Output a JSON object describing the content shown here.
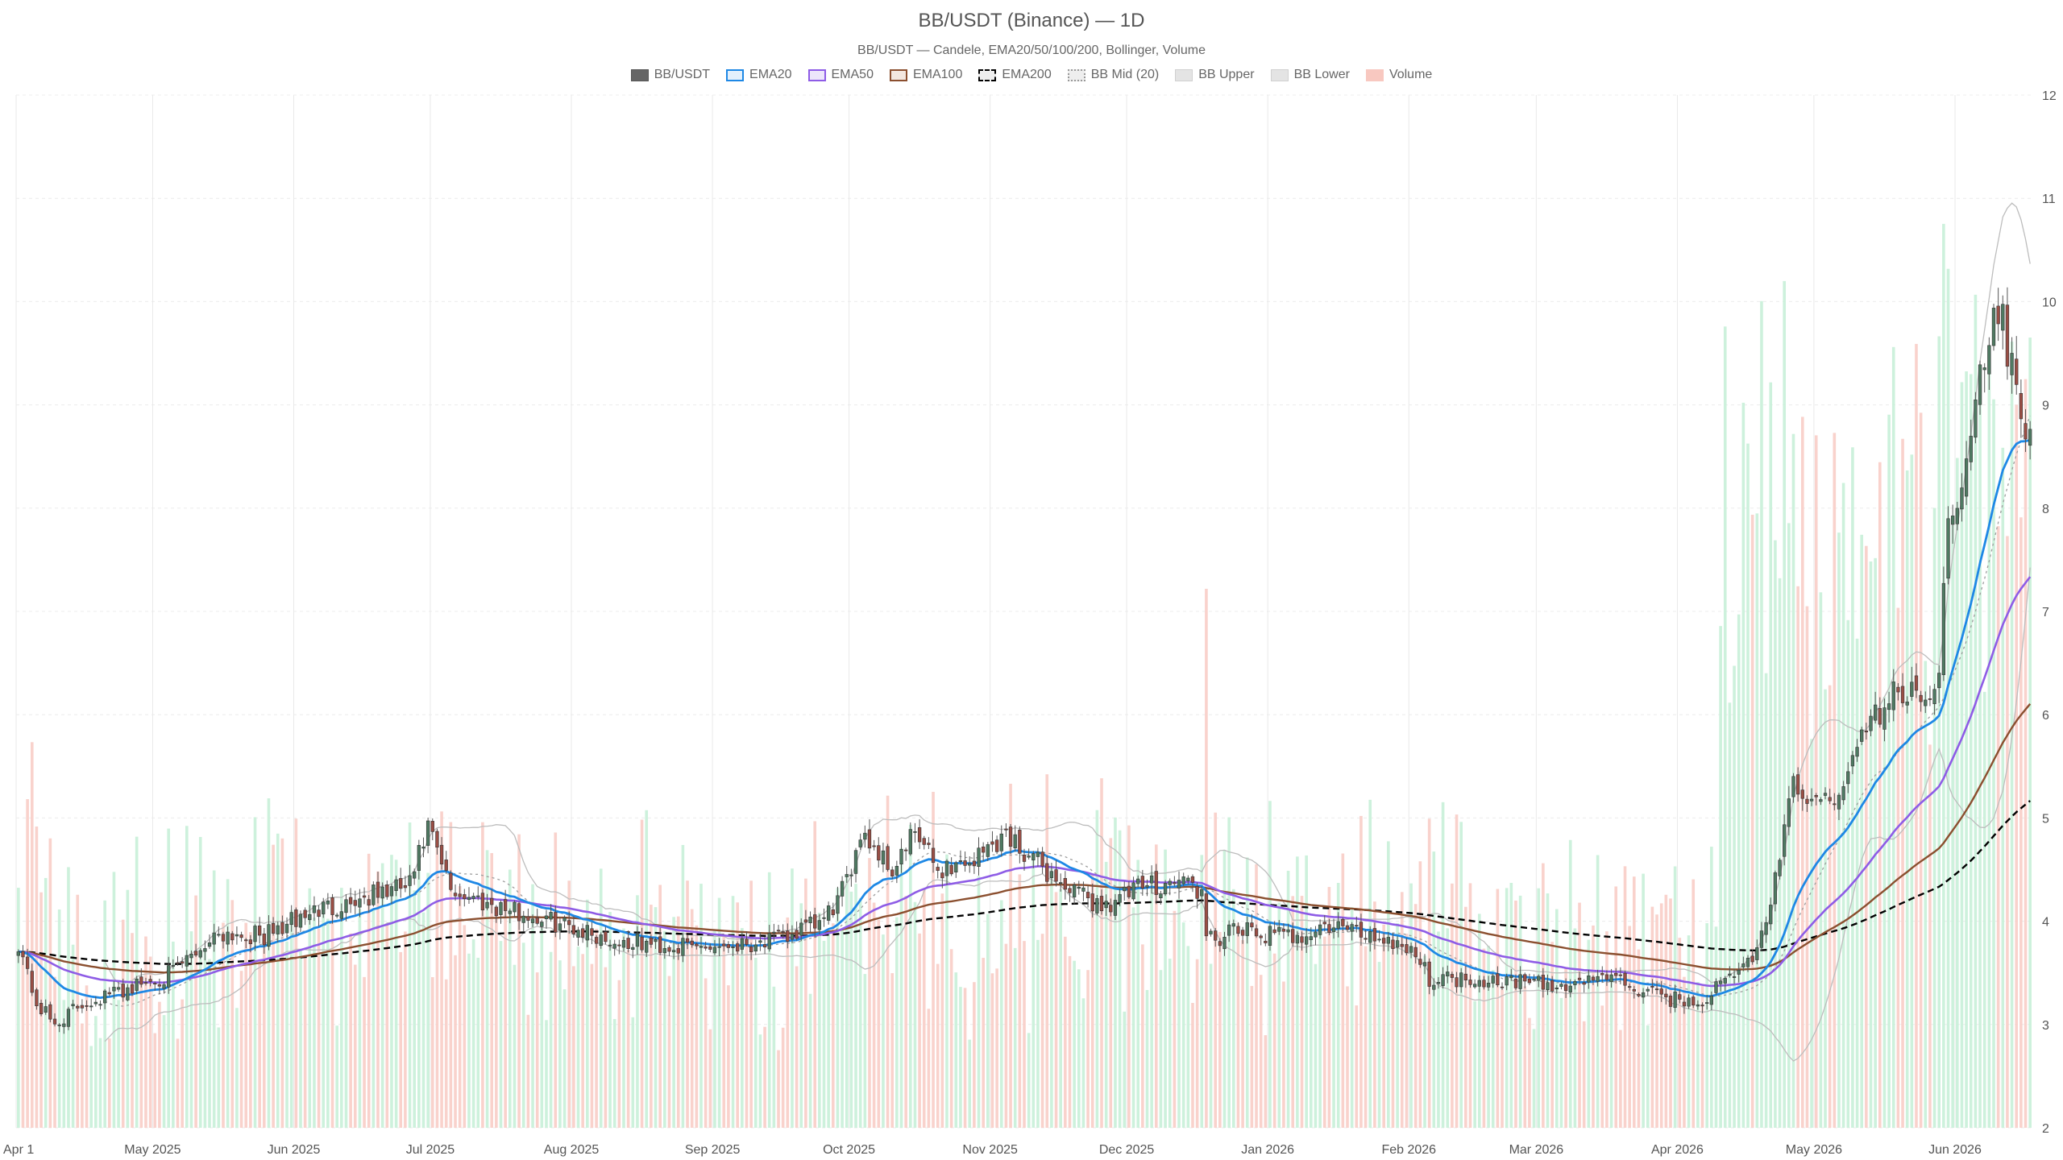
{
  "chart_data": {
    "type": "candlestick",
    "title": "BB/USDT (Binance) — 1D",
    "subtitle": "BB/USDT — Candele, EMA20/50/100/200, Bollinger, Volume",
    "legend": [
      {
        "label": "BB/USDT",
        "style": "candle",
        "color": "#666666"
      },
      {
        "label": "EMA20",
        "style": "line",
        "color": "#1e88e5"
      },
      {
        "label": "EMA50",
        "style": "line",
        "color": "#8e5ce6"
      },
      {
        "label": "EMA100",
        "style": "line",
        "color": "#8b4f2f"
      },
      {
        "label": "EMA200",
        "style": "dashed",
        "color": "#000000"
      },
      {
        "label": "BB Mid (20)",
        "style": "dotted",
        "color": "#9e9e9e"
      },
      {
        "label": "BB Upper",
        "style": "band",
        "color": "#bdbdbd"
      },
      {
        "label": "BB Lower",
        "style": "band",
        "color": "#bdbdbd"
      },
      {
        "label": "Volume",
        "style": "bar",
        "color": "#f8c8c0"
      }
    ],
    "ylim": [
      2,
      12
    ],
    "yticks": [
      2,
      3,
      4,
      5,
      6,
      7,
      8,
      9,
      10,
      11,
      12
    ],
    "x_range": [
      "2025-04-01",
      "2026-06-17"
    ],
    "xticks": [
      {
        "date": "2025-04-01",
        "label": "Apr 1"
      },
      {
        "date": "2025-05-01",
        "label": "May 2025"
      },
      {
        "date": "2025-06-01",
        "label": "Jun 2025"
      },
      {
        "date": "2025-07-01",
        "label": "Jul 2025"
      },
      {
        "date": "2025-08-01",
        "label": "Aug 2025"
      },
      {
        "date": "2025-09-01",
        "label": "Sep 2025"
      },
      {
        "date": "2025-10-01",
        "label": "Oct 2025"
      },
      {
        "date": "2025-11-01",
        "label": "Nov 2025"
      },
      {
        "date": "2025-12-01",
        "label": "Dec 2025"
      },
      {
        "date": "2026-01-01",
        "label": "Jan 2026"
      },
      {
        "date": "2026-02-01",
        "label": "Feb 2026"
      },
      {
        "date": "2026-03-01",
        "label": "Mar 2026"
      },
      {
        "date": "2026-04-01",
        "label": "Apr 2026"
      },
      {
        "date": "2026-05-01",
        "label": "May 2026"
      },
      {
        "date": "2026-06-01",
        "label": "Jun 2026"
      }
    ],
    "price_anchors": [
      [
        "2025-04-01",
        3.8
      ],
      [
        "2025-04-05",
        3.2
      ],
      [
        "2025-04-09",
        3.0
      ],
      [
        "2025-04-15",
        3.2
      ],
      [
        "2025-04-25",
        3.35
      ],
      [
        "2025-05-05",
        3.5
      ],
      [
        "2025-05-15",
        3.9
      ],
      [
        "2025-05-25",
        3.85
      ],
      [
        "2025-06-05",
        4.1
      ],
      [
        "2025-06-18",
        4.25
      ],
      [
        "2025-06-26",
        4.35
      ],
      [
        "2025-06-30",
        4.9
      ],
      [
        "2025-07-05",
        4.3
      ],
      [
        "2025-07-12",
        4.2
      ],
      [
        "2025-07-22",
        4.05
      ],
      [
        "2025-08-01",
        3.95
      ],
      [
        "2025-08-10",
        3.8
      ],
      [
        "2025-08-25",
        3.75
      ],
      [
        "2025-09-05",
        3.78
      ],
      [
        "2025-09-15",
        3.82
      ],
      [
        "2025-09-25",
        4.0
      ],
      [
        "2025-09-30",
        4.35
      ],
      [
        "2025-10-03",
        4.9
      ],
      [
        "2025-10-10",
        4.5
      ],
      [
        "2025-10-15",
        4.85
      ],
      [
        "2025-10-20",
        4.5
      ],
      [
        "2025-10-28",
        4.6
      ],
      [
        "2025-11-04",
        4.85
      ],
      [
        "2025-11-10",
        4.6
      ],
      [
        "2025-11-18",
        4.3
      ],
      [
        "2025-11-25",
        4.15
      ],
      [
        "2025-12-05",
        4.35
      ],
      [
        "2025-12-14",
        4.4
      ],
      [
        "2025-12-17",
        4.25
      ],
      [
        "2025-12-18",
        3.8
      ],
      [
        "2025-12-25",
        3.9
      ],
      [
        "2026-01-05",
        3.85
      ],
      [
        "2026-01-15",
        3.95
      ],
      [
        "2026-01-25",
        3.85
      ],
      [
        "2026-02-01",
        3.75
      ],
      [
        "2026-02-05",
        3.45
      ],
      [
        "2026-02-15",
        3.45
      ],
      [
        "2026-02-25",
        3.42
      ],
      [
        "2026-03-05",
        3.35
      ],
      [
        "2026-03-15",
        3.48
      ],
      [
        "2026-03-25",
        3.3
      ],
      [
        "2026-04-05",
        3.2
      ],
      [
        "2026-04-12",
        3.45
      ],
      [
        "2026-04-18",
        3.7
      ],
      [
        "2026-04-22",
        4.4
      ],
      [
        "2026-04-26",
        5.3
      ],
      [
        "2026-05-02",
        5.1
      ],
      [
        "2026-05-08",
        5.4
      ],
      [
        "2026-05-12",
        5.9
      ],
      [
        "2026-05-18",
        6.2
      ],
      [
        "2026-05-25",
        6.15
      ],
      [
        "2026-05-28",
        6.5
      ],
      [
        "2026-05-30",
        7.8
      ],
      [
        "2026-06-03",
        8.6
      ],
      [
        "2026-06-06",
        9.2
      ],
      [
        "2026-06-10",
        10.0
      ],
      [
        "2026-06-12",
        9.5
      ],
      [
        "2026-06-15",
        9.0
      ],
      [
        "2026-06-17",
        8.75
      ]
    ]
  }
}
